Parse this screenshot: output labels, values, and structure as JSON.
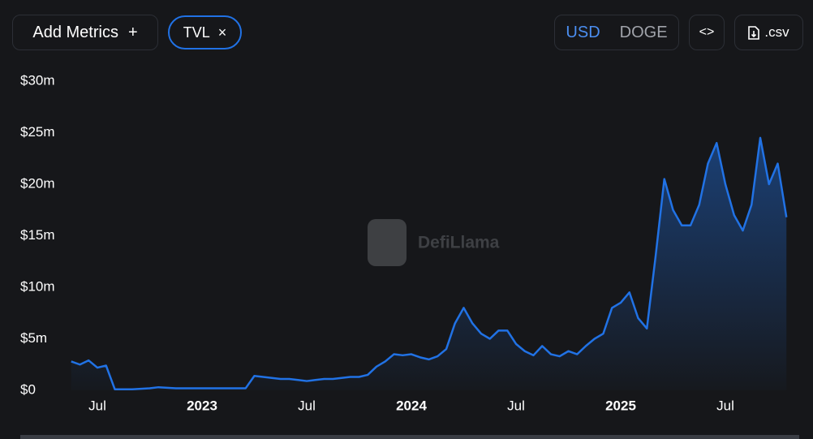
{
  "controls": {
    "add_metrics": "Add Metrics",
    "add_icon": "+",
    "remove_icon": "×",
    "currency_active": "USD",
    "currency_other": "DOGE",
    "embed": "<>",
    "download": ".csv",
    "watermark": "DefiLlama"
  },
  "chart_data": {
    "type": "area",
    "grid": false,
    "categories": [
      null,
      null,
      null,
      "Jul",
      null,
      null,
      null,
      null,
      null,
      null,
      null,
      null,
      null,
      null,
      null,
      "2023",
      null,
      null,
      null,
      null,
      null,
      null,
      null,
      null,
      null,
      null,
      null,
      "Jul",
      null,
      null,
      null,
      null,
      null,
      null,
      null,
      null,
      null,
      null,
      null,
      "2024",
      null,
      null,
      null,
      null,
      null,
      null,
      null,
      null,
      null,
      null,
      null,
      "Jul",
      null,
      null,
      null,
      null,
      null,
      null,
      null,
      null,
      null,
      null,
      null,
      "2025",
      null,
      null,
      null,
      null,
      null,
      null,
      null,
      null,
      null,
      null,
      null,
      "Jul",
      null,
      null,
      null,
      null,
      null,
      null,
      null
    ],
    "series": [
      {
        "name": "TVL",
        "color": "#2172e5",
        "values": [
          2.8,
          2.5,
          2.9,
          2.2,
          2.4,
          0.1,
          0.1,
          0.1,
          0.15,
          0.2,
          0.3,
          0.25,
          0.2,
          0.2,
          0.2,
          0.2,
          0.2,
          0.2,
          0.2,
          0.2,
          0.2,
          1.4,
          1.3,
          1.2,
          1.1,
          1.1,
          1.0,
          0.9,
          1.0,
          1.1,
          1.1,
          1.2,
          1.3,
          1.3,
          1.5,
          2.3,
          2.8,
          3.5,
          3.4,
          3.5,
          3.2,
          3.0,
          3.3,
          4.0,
          6.5,
          8.0,
          6.5,
          5.5,
          5.0,
          5.8,
          5.8,
          4.5,
          3.8,
          3.4,
          4.3,
          3.5,
          3.3,
          3.8,
          3.5,
          4.3,
          5.0,
          5.5,
          8.0,
          8.5,
          9.5,
          7.0,
          6.0,
          13,
          20.5,
          17.5,
          16.0,
          16.0,
          18.0,
          22.0,
          24.0,
          20.0,
          17.0,
          15.5,
          18.0,
          24.5,
          20.0,
          22.0,
          16.8
        ]
      }
    ],
    "ylim": [
      0,
      30
    ],
    "yticks": [
      {
        "value": 0,
        "label": "$0"
      },
      {
        "value": 5,
        "label": "$5m"
      },
      {
        "value": 10,
        "label": "$10m"
      },
      {
        "value": 15,
        "label": "$15m"
      },
      {
        "value": 20,
        "label": "$20m"
      },
      {
        "value": 25,
        "label": "$25m"
      },
      {
        "value": 30,
        "label": "$30m"
      }
    ]
  }
}
